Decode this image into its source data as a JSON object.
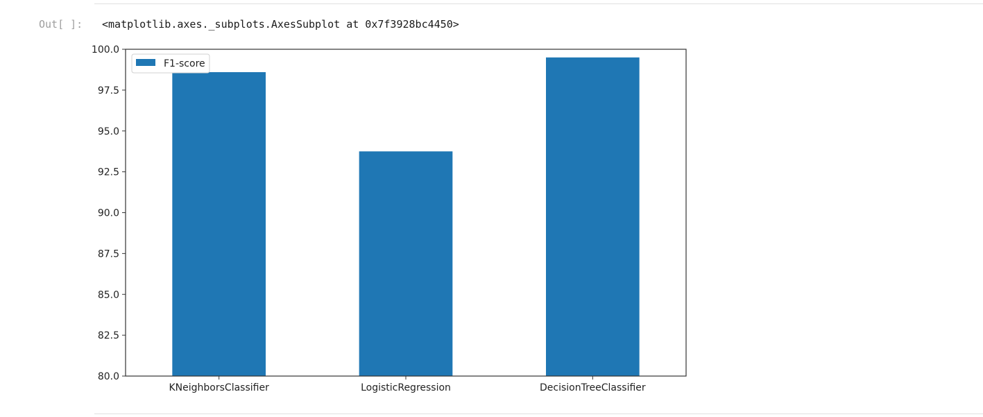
{
  "notebook": {
    "out_prompt": "Out[ ]:",
    "output_repr": "<matplotlib.axes._subplots.AxesSubplot at 0x7f3928bc4450>"
  },
  "chart_data": {
    "type": "bar",
    "categories": [
      "KNeighborsClassifier",
      "LogisticRegression",
      "DecisionTreeClassifier"
    ],
    "series": [
      {
        "name": "F1-score",
        "values": [
          98.6,
          93.75,
          99.5
        ],
        "color": "#1f77b4"
      }
    ],
    "ylim": [
      80.0,
      100.0
    ],
    "yticks": [
      "80.0",
      "82.5",
      "85.0",
      "87.5",
      "90.0",
      "92.5",
      "95.0",
      "97.5",
      "100.0"
    ],
    "title": "",
    "xlabel": "",
    "ylabel": "",
    "grid": false,
    "legend": {
      "position": "upper-left"
    }
  }
}
